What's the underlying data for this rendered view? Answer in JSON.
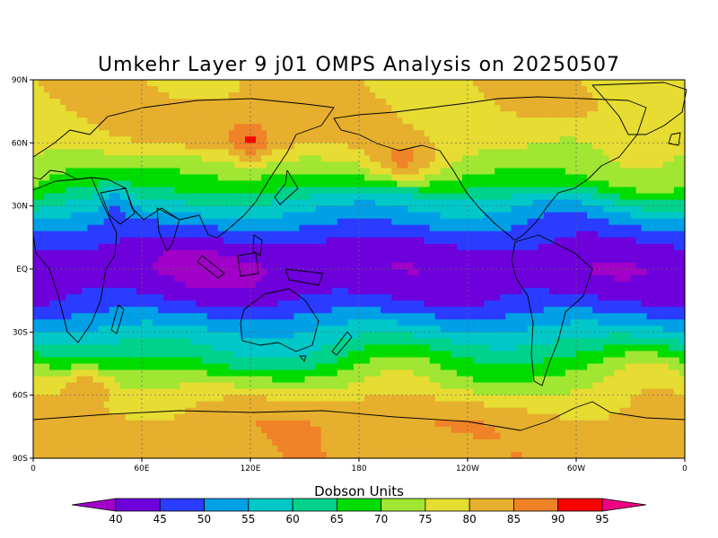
{
  "chart_data": {
    "type": "heatmap",
    "title": "Umkehr Layer 9 j01 OMPS Analysis on 20250507",
    "colorbar_label": "Dobson Units",
    "colorbar_ticks": [
      "40",
      "45",
      "50",
      "55",
      "60",
      "65",
      "70",
      "75",
      "80",
      "85",
      "90",
      "95"
    ],
    "colorbar_colors": [
      "#a000c8",
      "#6e00dc",
      "#2a3cff",
      "#00a0e6",
      "#00c8c8",
      "#00d28c",
      "#00dc00",
      "#a0e632",
      "#e6dc32",
      "#e6af2d",
      "#f08228",
      "#fa0000",
      "#f00082"
    ],
    "x_ticks": [
      "0",
      "60E",
      "120E",
      "180",
      "120W",
      "60W",
      "0"
    ],
    "x_values": [
      0,
      60,
      120,
      180,
      240,
      300,
      360
    ],
    "y_ticks": [
      "90N",
      "60N",
      "30N",
      "EQ",
      "30S",
      "60S",
      "90S"
    ],
    "y_values": [
      90,
      60,
      30,
      0,
      -30,
      -60,
      -90
    ],
    "xlim": [
      0,
      360
    ],
    "ylim": [
      -90,
      90
    ],
    "grid": true,
    "fields": {
      "zonal_profile_lat": [
        90,
        75,
        60,
        50,
        40,
        32,
        24,
        16,
        8,
        0,
        -8,
        -16,
        -24,
        -32,
        -40,
        -50,
        -60,
        -72,
        -90
      ],
      "zonal_profile_du": [
        80,
        80,
        79,
        74,
        68,
        60,
        53,
        47,
        43,
        42,
        43,
        46,
        52,
        58,
        64,
        72,
        78,
        82,
        83
      ],
      "anomalies": [
        {
          "lon": 115,
          "lat": 62,
          "du": 8,
          "lon_w": 25,
          "lat_w": 12
        },
        {
          "lon": 120,
          "lat": 58,
          "du": 8,
          "lon_w": 6,
          "lat_w": 6
        },
        {
          "lon": 205,
          "lat": 50,
          "du": 10,
          "lon_w": 12,
          "lat_w": 7
        },
        {
          "lon": 90,
          "lat": 50,
          "du": -6,
          "lon_w": 30,
          "lat_w": 8
        },
        {
          "lon": 45,
          "lat": 33,
          "du": -8,
          "lon_w": 5,
          "lat_w": 6
        },
        {
          "lon": 200,
          "lat": 35,
          "du": -5,
          "lon_w": 25,
          "lat_w": 6
        },
        {
          "lon": 300,
          "lat": 60,
          "du": -6,
          "lon_w": 20,
          "lat_w": 8
        },
        {
          "lon": 295,
          "lat": 30,
          "du": -4,
          "lon_w": 25,
          "lat_w": 7
        },
        {
          "lon": 340,
          "lat": 35,
          "du": 4,
          "lon_w": 20,
          "lat_w": 8
        },
        {
          "lon": 30,
          "lat": -55,
          "du": 10,
          "lon_w": 10,
          "lat_w": 6
        },
        {
          "lon": 340,
          "lat": -45,
          "du": 6,
          "lon_w": 15,
          "lat_w": 8
        },
        {
          "lon": 240,
          "lat": -55,
          "du": -5,
          "lon_w": 25,
          "lat_w": 8
        },
        {
          "lon": 120,
          "lat": -45,
          "du": -6,
          "lon_w": 30,
          "lat_w": 8
        },
        {
          "lon": 190,
          "lat": -70,
          "du": 4,
          "lon_w": 40,
          "lat_w": 10
        },
        {
          "lon": 200,
          "lat": -45,
          "du": 4,
          "lon_w": 20,
          "lat_w": 10
        },
        {
          "lon": 120,
          "lat": 0,
          "du": -3,
          "lon_w": 40,
          "lat_w": 10
        },
        {
          "lon": 300,
          "lat": -5,
          "du": -2,
          "lon_w": 20,
          "lat_w": 6
        }
      ]
    }
  }
}
